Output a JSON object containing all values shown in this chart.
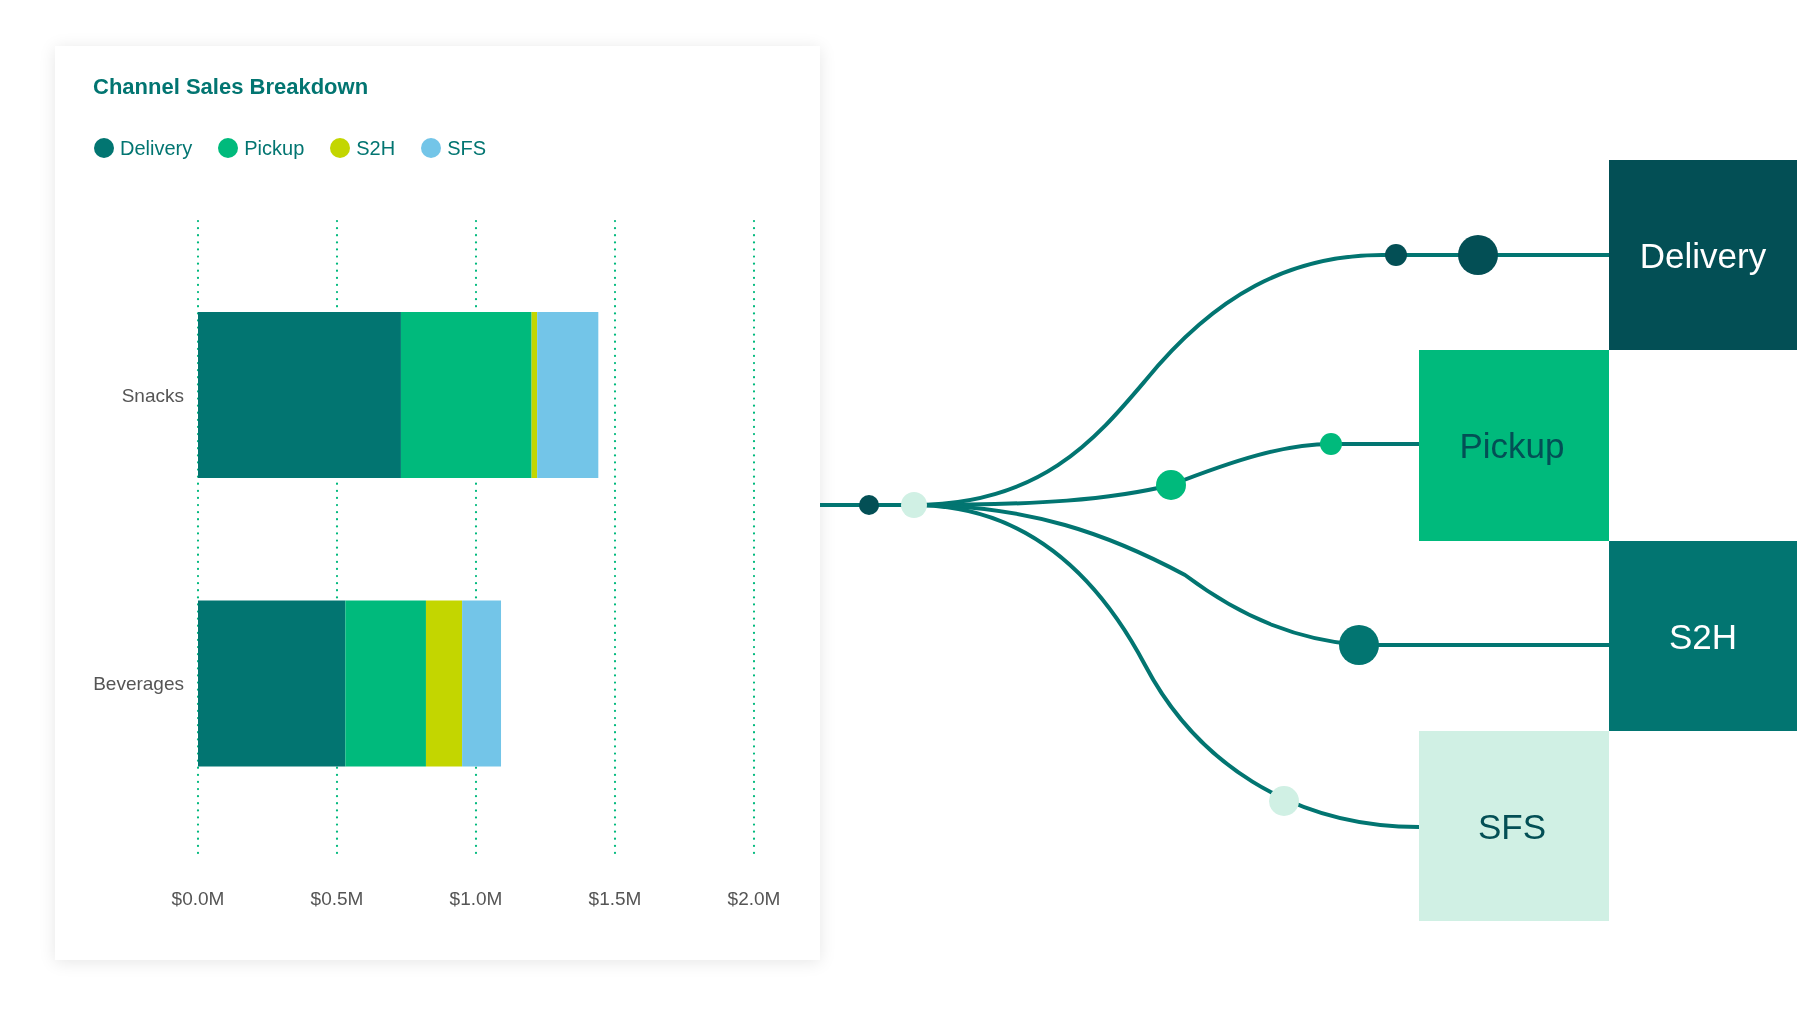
{
  "chart_data": {
    "type": "bar",
    "title": "Channel Sales Breakdown",
    "orientation": "horizontal",
    "stacked": true,
    "categories": [
      "Snacks",
      "Beverages"
    ],
    "series": [
      {
        "name": "Delivery",
        "color": "#027571",
        "values": [
          0.73,
          0.53
        ]
      },
      {
        "name": "Pickup",
        "color": "#00ba7c",
        "values": [
          0.47,
          0.29
        ]
      },
      {
        "name": "S2H",
        "color": "#c3d600",
        "values": [
          0.02,
          0.13
        ]
      },
      {
        "name": "SFS",
        "color": "#73c5e8",
        "values": [
          0.22,
          0.14
        ]
      }
    ],
    "xlim": [
      0,
      2
    ],
    "xticks": [
      {
        "value": 0,
        "label": "$0.0M"
      },
      {
        "value": 0.5,
        "label": "$0.5M"
      },
      {
        "value": 1,
        "label": "$1.0M"
      },
      {
        "value": 1.5,
        "label": "$1.5M"
      },
      {
        "value": 2,
        "label": "$2.0M"
      }
    ],
    "grid": "x",
    "legend": "top left",
    "annotations": [
      "Delivery",
      "Pickup",
      "S2H",
      "SFS"
    ]
  }
}
